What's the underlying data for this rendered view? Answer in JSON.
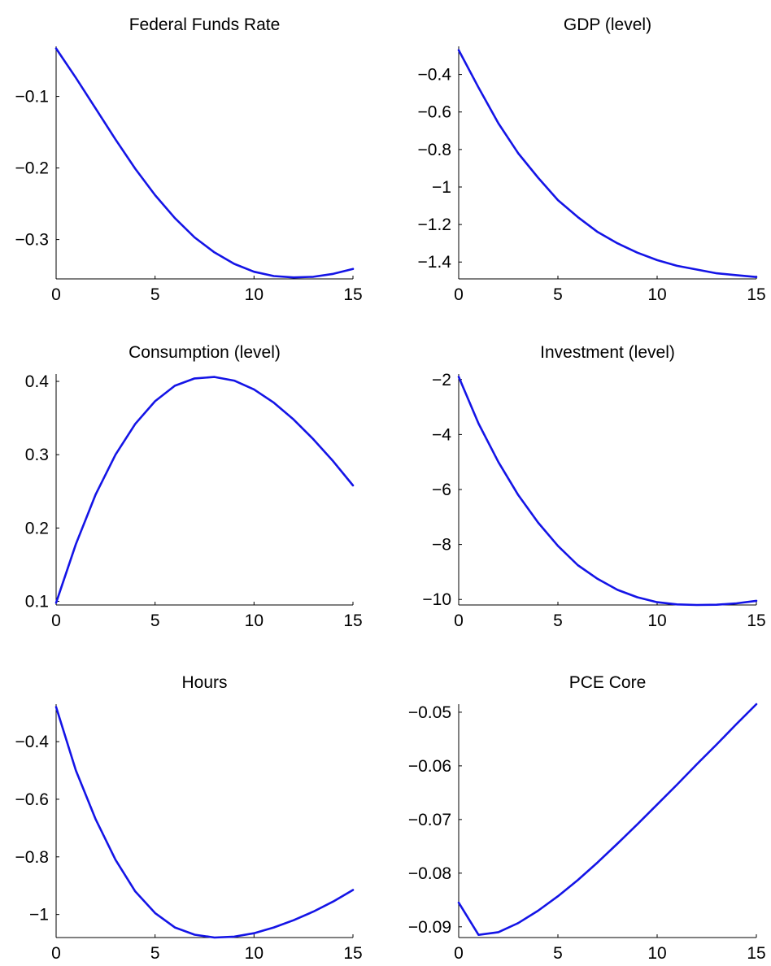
{
  "chart_data": [
    {
      "type": "line",
      "title": "Federal Funds Rate",
      "xlabel": "",
      "ylabel": "",
      "x": [
        0,
        1,
        2,
        3,
        4,
        5,
        6,
        7,
        8,
        9,
        10,
        11,
        12,
        13,
        14,
        15
      ],
      "series": [
        {
          "values": [
            -0.033,
            -0.074,
            -0.117,
            -0.16,
            -0.201,
            -0.238,
            -0.27,
            -0.297,
            -0.318,
            -0.334,
            -0.345,
            -0.351,
            -0.353,
            -0.352,
            -0.348,
            -0.341
          ]
        }
      ],
      "xlim": [
        0,
        15
      ],
      "ylim": [
        -0.355,
        -0.03
      ],
      "xticks": [
        0,
        5,
        10,
        15
      ],
      "xtick_labels": [
        "0",
        "5",
        "10",
        "15"
      ],
      "yticks": [
        -0.1,
        -0.2,
        -0.3
      ],
      "ytick_labels": [
        "−0.1",
        "−0.2",
        "−0.3"
      ],
      "grid": false
    },
    {
      "type": "line",
      "title": "GDP (level)",
      "xlabel": "",
      "ylabel": "",
      "x": [
        0,
        1,
        2,
        3,
        4,
        5,
        6,
        7,
        8,
        9,
        10,
        11,
        12,
        13,
        14,
        15
      ],
      "series": [
        {
          "values": [
            -0.27,
            -0.47,
            -0.66,
            -0.82,
            -0.95,
            -1.07,
            -1.16,
            -1.24,
            -1.3,
            -1.35,
            -1.39,
            -1.42,
            -1.44,
            -1.46,
            -1.47,
            -1.48
          ]
        }
      ],
      "xlim": [
        0,
        15
      ],
      "ylim": [
        -1.49,
        -0.25
      ],
      "xticks": [
        0,
        5,
        10,
        15
      ],
      "xtick_labels": [
        "0",
        "5",
        "10",
        "15"
      ],
      "yticks": [
        -0.4,
        -0.6,
        -0.8,
        -1.0,
        -1.2,
        -1.4
      ],
      "ytick_labels": [
        "−0.4",
        "−0.6",
        "−0.8",
        "−1",
        "−1.2",
        "−1.4"
      ],
      "grid": false
    },
    {
      "type": "line",
      "title": "Consumption (level)",
      "xlabel": "",
      "ylabel": "",
      "x": [
        0,
        1,
        2,
        3,
        4,
        5,
        6,
        7,
        8,
        9,
        10,
        11,
        12,
        13,
        14,
        15
      ],
      "series": [
        {
          "values": [
            0.098,
            0.178,
            0.246,
            0.3,
            0.342,
            0.373,
            0.394,
            0.404,
            0.406,
            0.401,
            0.389,
            0.371,
            0.348,
            0.321,
            0.291,
            0.258
          ]
        }
      ],
      "xlim": [
        0,
        15
      ],
      "ylim": [
        0.095,
        0.41
      ],
      "xticks": [
        0,
        5,
        10,
        15
      ],
      "xtick_labels": [
        "0",
        "5",
        "10",
        "15"
      ],
      "yticks": [
        0.1,
        0.2,
        0.3,
        0.4
      ],
      "ytick_labels": [
        "0.1",
        "0.2",
        "0.3",
        "0.4"
      ],
      "grid": false
    },
    {
      "type": "line",
      "title": "Investment (level)",
      "xlabel": "",
      "ylabel": "",
      "x": [
        0,
        1,
        2,
        3,
        4,
        5,
        6,
        7,
        8,
        9,
        10,
        11,
        12,
        13,
        14,
        15
      ],
      "series": [
        {
          "values": [
            -1.9,
            -3.6,
            -5.0,
            -6.2,
            -7.2,
            -8.05,
            -8.75,
            -9.25,
            -9.65,
            -9.92,
            -10.1,
            -10.18,
            -10.2,
            -10.19,
            -10.14,
            -10.05
          ]
        }
      ],
      "xlim": [
        0,
        15
      ],
      "ylim": [
        -10.2,
        -1.8
      ],
      "xticks": [
        0,
        5,
        10,
        15
      ],
      "xtick_labels": [
        "0",
        "5",
        "10",
        "15"
      ],
      "yticks": [
        -2,
        -4,
        -6,
        -8,
        -10
      ],
      "ytick_labels": [
        "−2",
        "−4",
        "−6",
        "−8",
        "−10"
      ],
      "grid": false
    },
    {
      "type": "line",
      "title": "Hours",
      "xlabel": "",
      "ylabel": "",
      "x": [
        0,
        1,
        2,
        3,
        4,
        5,
        6,
        7,
        8,
        9,
        10,
        11,
        12,
        13,
        14,
        15
      ],
      "series": [
        {
          "values": [
            -0.28,
            -0.5,
            -0.67,
            -0.81,
            -0.92,
            -0.995,
            -1.045,
            -1.07,
            -1.08,
            -1.077,
            -1.065,
            -1.045,
            -1.02,
            -0.99,
            -0.955,
            -0.915
          ]
        }
      ],
      "xlim": [
        0,
        15
      ],
      "ylim": [
        -1.08,
        -0.27
      ],
      "xticks": [
        0,
        5,
        10,
        15
      ],
      "xtick_labels": [
        "0",
        "5",
        "10",
        "15"
      ],
      "yticks": [
        -0.4,
        -0.6,
        -0.8,
        -1.0
      ],
      "ytick_labels": [
        "−0.4",
        "−0.6",
        "−0.8",
        "−1"
      ],
      "grid": false
    },
    {
      "type": "line",
      "title": "PCE Core",
      "xlabel": "",
      "ylabel": "",
      "x": [
        0,
        1,
        2,
        3,
        4,
        5,
        6,
        7,
        8,
        9,
        10,
        11,
        12,
        13,
        14,
        15
      ],
      "series": [
        {
          "values": [
            -0.0855,
            -0.0915,
            -0.091,
            -0.0893,
            -0.087,
            -0.0843,
            -0.0813,
            -0.078,
            -0.0745,
            -0.0709,
            -0.0672,
            -0.0635,
            -0.0597,
            -0.056,
            -0.0522,
            -0.0485
          ]
        }
      ],
      "xlim": [
        0,
        15
      ],
      "ylim": [
        -0.092,
        -0.0485
      ],
      "xticks": [
        0,
        5,
        10,
        15
      ],
      "xtick_labels": [
        "0",
        "5",
        "10",
        "15"
      ],
      "yticks": [
        -0.05,
        -0.06,
        -0.07,
        -0.08,
        -0.09
      ],
      "ytick_labels": [
        "−0.05",
        "−0.06",
        "−0.07",
        "−0.08",
        "−0.09"
      ],
      "grid": false
    }
  ],
  "colors": {
    "series": "#1414e6",
    "axis": "#000000",
    "background": "#ffffff"
  }
}
